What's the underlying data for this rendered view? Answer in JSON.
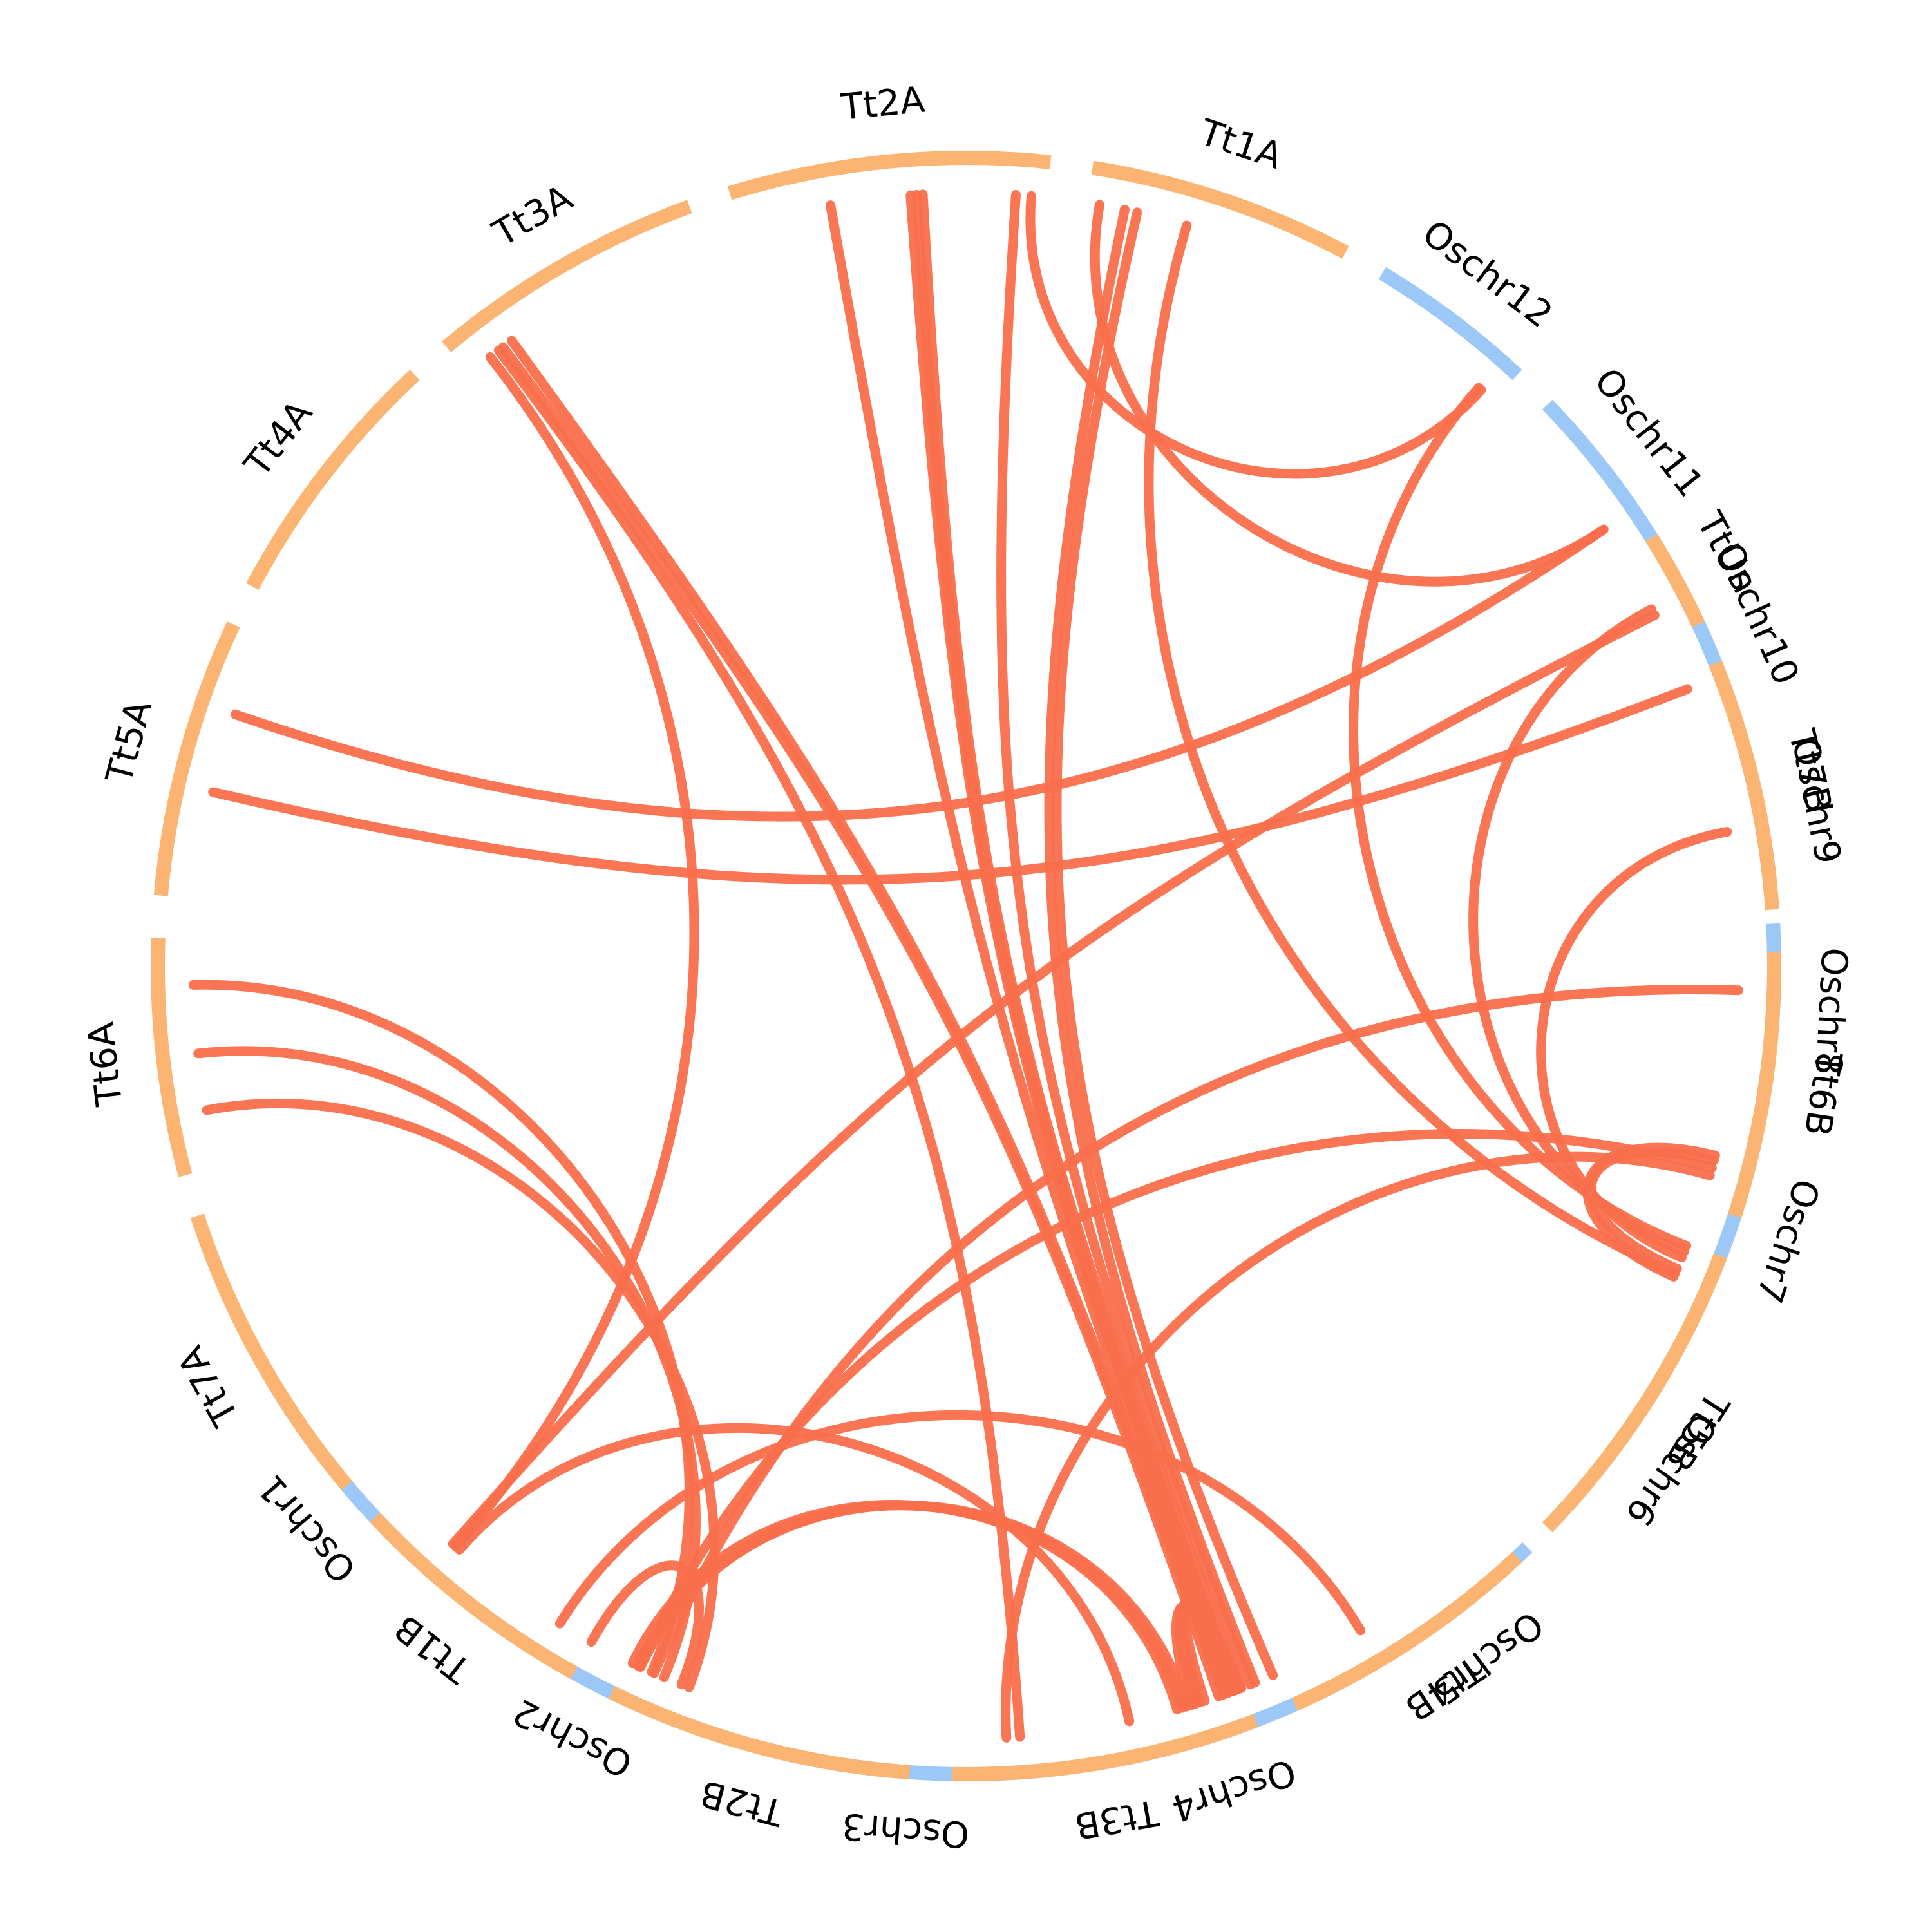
{
  "colors": {
    "oryza": "#9cc8f7",
    "triticum": "#fbb472",
    "link": "#f96e4b",
    "text": "#000000"
  },
  "chromosomes": [
    {
      "id": "Oschr1",
      "label": "Oschr1",
      "group": "oryza",
      "start": 211,
      "end": 230
    },
    {
      "id": "Oschr2",
      "label": "Oschr2",
      "group": "oryza",
      "start": 233,
      "end": 253
    },
    {
      "id": "Oschr3",
      "label": "Oschr3",
      "group": "oryza",
      "start": 256,
      "end": 276
    },
    {
      "id": "Oschr4",
      "label": "Oschr4",
      "group": "oryza",
      "start": 279,
      "end": 297
    },
    {
      "id": "Oschr5",
      "label": "Oschr5",
      "group": "oryza",
      "start": 300,
      "end": 314
    },
    {
      "id": "Oschr6",
      "label": "Oschr6",
      "group": "oryza",
      "start": 317,
      "end": 332
    },
    {
      "id": "Oschr7",
      "label": "Oschr7",
      "group": "oryza",
      "start": 335,
      "end": 348
    },
    {
      "id": "Oschr8",
      "label": "Oschr8",
      "group": "oryza",
      "start": 351,
      "end": 363
    },
    {
      "id": "Oschr9",
      "label": "Oschr9",
      "group": "oryza",
      "start": 366,
      "end": 376
    },
    {
      "id": "Oschr10",
      "label": "Oschr10",
      "group": "oryza",
      "start": 379,
      "end": 389
    },
    {
      "id": "Oschr11",
      "label": "Oschr11",
      "group": "oryza",
      "start": 392,
      "end": 404
    },
    {
      "id": "Oschr12",
      "label": "Oschr12",
      "group": "oryza",
      "start": 407,
      "end": 419
    },
    {
      "id": "Tt1A",
      "label": "Tt1A",
      "group": "triticum",
      "start": 422,
      "end": 441
    },
    {
      "id": "Tt2A",
      "label": "Tt2A",
      "group": "triticum",
      "start": 444,
      "end": 467
    },
    {
      "id": "Tt3A",
      "label": "Tt3A",
      "group": "triticum",
      "start": 470,
      "end": 490
    },
    {
      "id": "Tt4A",
      "label": "Tt4A",
      "group": "triticum",
      "start": 493,
      "end": 512
    },
    {
      "id": "Tt5A",
      "label": "Tt5A",
      "group": "triticum",
      "start": 515,
      "end": 535
    },
    {
      "id": "Tt6A",
      "label": "Tt6A",
      "group": "triticum",
      "start": 538,
      "end": 555
    },
    {
      "id": "Tt7A",
      "label": "Tt7A",
      "group": "triticum",
      "start": 558,
      "end": 580
    },
    {
      "id": "Tt1B",
      "label": "Tt1B",
      "group": "triticum",
      "start": 583,
      "end": 601
    },
    {
      "id": "Tt2B",
      "label": "Tt2B",
      "group": "triticum",
      "start": 604,
      "end": 626
    },
    {
      "id": "Tt3B",
      "label": "Tt3B",
      "group": "triticum",
      "start": 629,
      "end": 651
    },
    {
      "id": "Tt4B",
      "label": "Tt4B",
      "group": "triticum",
      "start": 654,
      "end": 673
    },
    {
      "id": "Tt5B",
      "label": "Tt5B",
      "group": "triticum",
      "start": 676,
      "end": 699
    },
    {
      "id": "Tt6B",
      "label": "Tt6B",
      "group": "triticum",
      "start": 702,
      "end": 721
    },
    {
      "id": "Tt7B",
      "label": "Tt7B",
      "group": "triticum",
      "start": 724,
      "end": 742
    },
    {
      "id": "TtUn",
      "label": "TtUn",
      "group": "triticum",
      "start": 745,
      "end": 752
    }
  ],
  "links": [
    {
      "source": "Oschr4",
      "source_pos": 0.8,
      "target": "Tt1A",
      "target_pos": 0.8
    },
    {
      "source": "Oschr4",
      "source_pos": 0.72,
      "target": "Tt1A",
      "target_pos": 0.85
    },
    {
      "source": "Oschr4",
      "source_pos": 0.7,
      "target": "Tt2A",
      "target_pos": 0.1
    },
    {
      "source": "Oschr4",
      "source_pos": 0.66,
      "target": "Tt2A",
      "target_pos": 0.4
    },
    {
      "source": "Oschr4",
      "source_pos": 0.64,
      "target": "Tt2A",
      "target_pos": 0.42
    },
    {
      "source": "Oschr4",
      "source_pos": 0.62,
      "target": "Tt2A",
      "target_pos": 0.44
    },
    {
      "source": "Oschr4",
      "source_pos": 0.6,
      "target": "Tt2A",
      "target_pos": 0.7
    },
    {
      "source": "Oschr4",
      "source_pos": 0.58,
      "target": "Tt3A",
      "target_pos": 0.8
    },
    {
      "source": "Oschr4",
      "source_pos": 0.56,
      "target": "Tt3A",
      "target_pos": 0.84
    },
    {
      "source": "Oschr4",
      "source_pos": 0.5,
      "target": "Tt3B",
      "target_pos": 0.96
    },
    {
      "source": "Oschr4",
      "source_pos": 0.48,
      "target": "Tt3B",
      "target_pos": 0.97
    },
    {
      "source": "Oschr4",
      "source_pos": 0.46,
      "target": "Tt3B",
      "target_pos": 0.98
    },
    {
      "source": "Oschr4",
      "source_pos": 0.44,
      "target": "Tt3B",
      "target_pos": 0.99
    },
    {
      "source": "Oschr4",
      "source_pos": 0.42,
      "target": "Tt2B",
      "target_pos": 0.05
    },
    {
      "source": "Oschr4",
      "source_pos": 0.4,
      "target": "Tt2B",
      "target_pos": 0.04
    },
    {
      "source": "Oschr4",
      "source_pos": 0.38,
      "target": "Tt2B",
      "target_pos": 0.02
    },
    {
      "source": "Oschr5",
      "source_pos": 0.05,
      "target": "Tt1B",
      "target_pos": 0.85
    },
    {
      "source": "Oschr3",
      "source_pos": 0.9,
      "target": "Tt3A",
      "target_pos": 0.86
    },
    {
      "source": "Oschr3",
      "source_pos": 0.85,
      "target": "Tt6B",
      "target_pos": 0.12
    },
    {
      "source": "Oschr2",
      "source_pos": 0.8,
      "target": "Tt6A",
      "target_pos": 0.75
    },
    {
      "source": "Oschr2",
      "source_pos": 0.7,
      "target": "Tt6A",
      "target_pos": 0.5
    },
    {
      "source": "Oschr2",
      "source_pos": 0.65,
      "target": "Tt6A",
      "target_pos": 0.2
    },
    {
      "source": "Oschr2",
      "source_pos": 0.6,
      "target": "Tt6B",
      "target_pos": 0.15
    },
    {
      "source": "Oschr2",
      "source_pos": 0.4,
      "target": "Tt2B",
      "target_pos": 0.2
    },
    {
      "source": "Oschr1",
      "source_pos": 0.95,
      "target": "Tt3B",
      "target_pos": 0.6
    },
    {
      "source": "Oschr1",
      "source_pos": 0.93,
      "target": "Tt3A",
      "target_pos": 0.9
    },
    {
      "source": "Oschr7",
      "source_pos": 0.15,
      "target": "Tt6B",
      "target_pos": 0.18
    },
    {
      "source": "Oschr7",
      "source_pos": 0.1,
      "target": "Tt6B",
      "target_pos": 0.2
    },
    {
      "source": "Oschr7",
      "source_pos": 0.12,
      "target": "Tt1A",
      "target_pos": 0.6
    },
    {
      "source": "Oschr8",
      "source_pos": 0.6,
      "target": "Tt2B",
      "target_pos": 0.1
    },
    {
      "source": "Oschr9",
      "source_pos": 0.4,
      "target": "Tt5B",
      "target_pos": 0.95
    },
    {
      "source": "Oschr10",
      "source_pos": 0.2,
      "target": "Tt5A",
      "target_pos": 0.6
    },
    {
      "source": "Oschr10",
      "source_pos": 0.85,
      "target": "Tt5B",
      "target_pos": 0.97
    },
    {
      "source": "Oschr10",
      "source_pos": 0.8,
      "target": "Tt1B",
      "target_pos": 0.3
    },
    {
      "source": "Oschr11",
      "source_pos": 0.2,
      "target": "Tt5A",
      "target_pos": 0.3
    },
    {
      "source": "Oschr11",
      "source_pos": 0.2,
      "target": "Tt1A",
      "target_pos": 0.95
    },
    {
      "source": "Oschr12",
      "source_pos": 0.1,
      "target": "Tt2A",
      "target_pos": 0.05
    },
    {
      "source": "Oschr12",
      "source_pos": 0.12,
      "target": "Tt5B",
      "target_pos": 0.99
    }
  ]
}
